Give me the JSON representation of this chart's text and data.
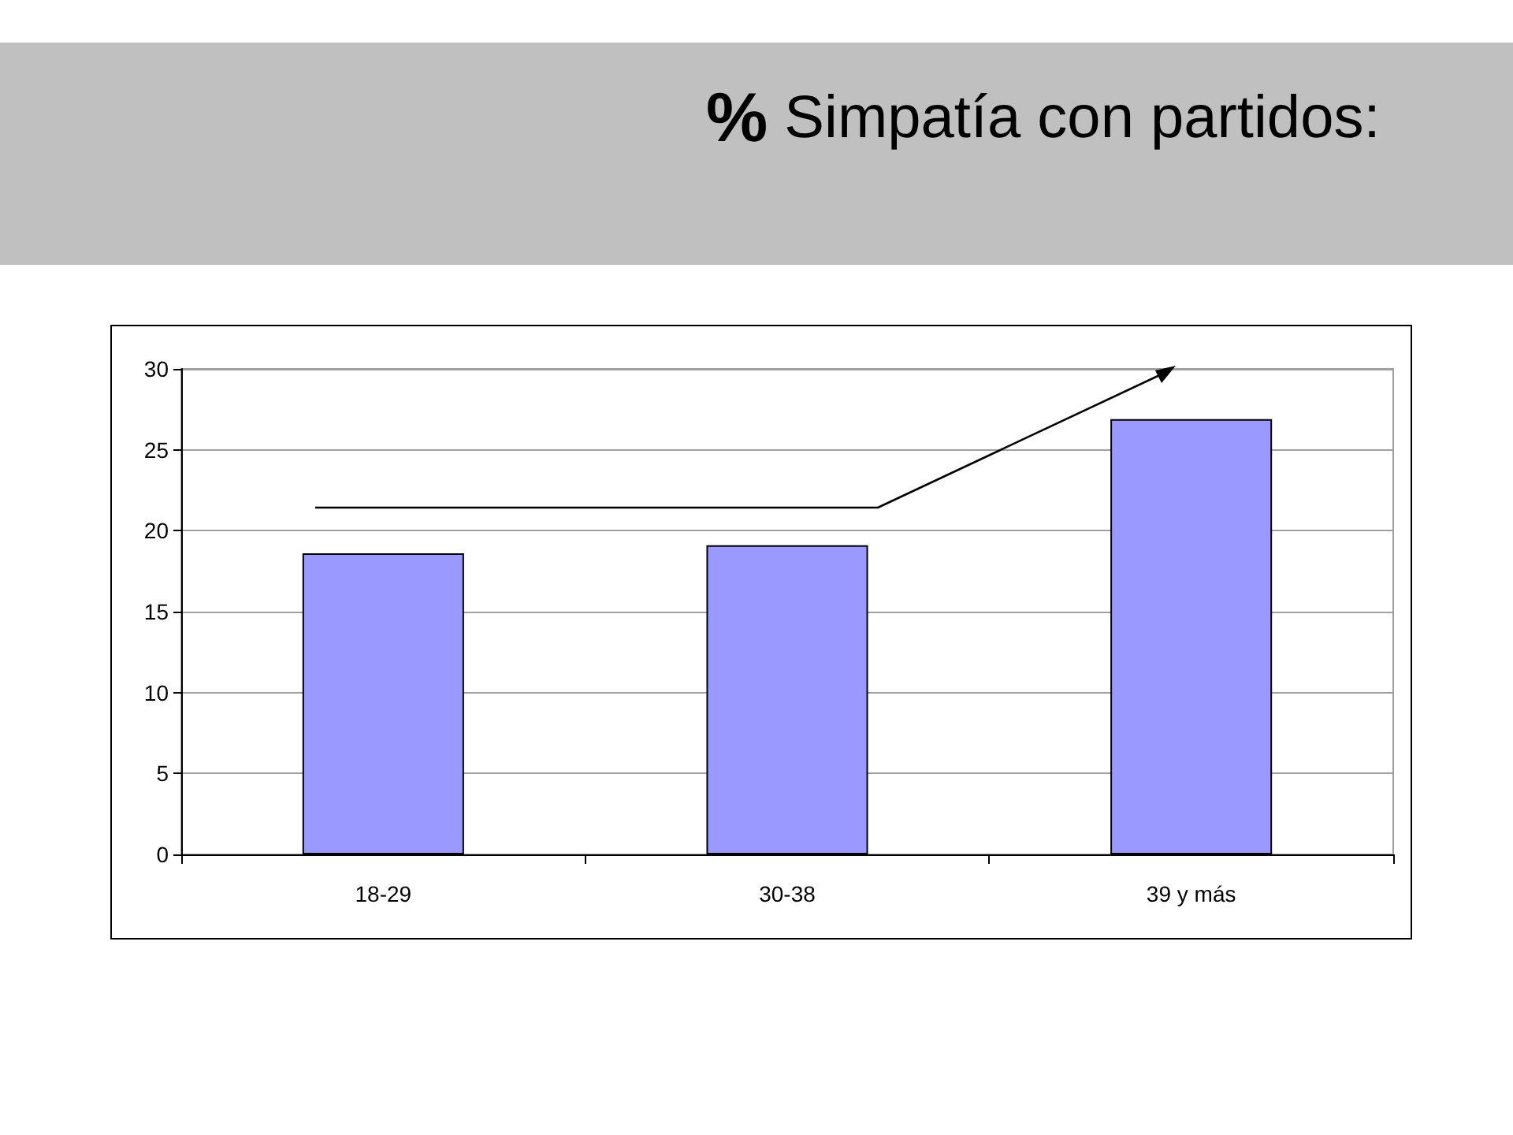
{
  "chart_data": {
    "type": "bar",
    "title": "% Simpatía con partidos:",
    "categories": [
      "18-29",
      "30-38",
      "39 y más"
    ],
    "values": [
      18.6,
      19.1,
      26.9
    ],
    "color": "#9999ff",
    "ylim": [
      0,
      30
    ],
    "yticks": [
      0,
      5,
      10,
      15,
      20,
      25,
      30
    ],
    "grid": "y"
  }
}
